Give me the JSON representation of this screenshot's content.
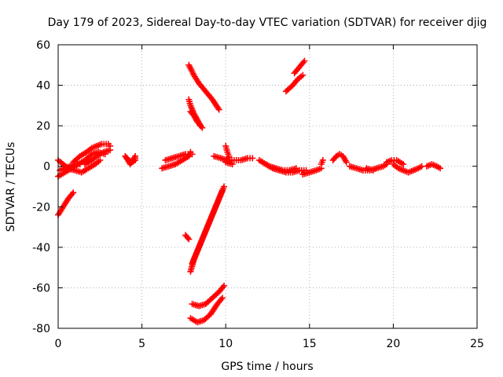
{
  "chart_data": {
    "type": "scatter",
    "title": "Day 179 of 2023, Sidereal Day-to-day VTEC variation (SDTVAR) for receiver djig",
    "xlabel": "GPS time / hours",
    "ylabel": "SDTVAR / TECUs",
    "xlim": [
      0,
      25
    ],
    "ylim": [
      -80,
      60
    ],
    "xticks": [
      0,
      5,
      10,
      15,
      20,
      25
    ],
    "yticks": [
      -80,
      -60,
      -40,
      -20,
      0,
      20,
      40,
      60
    ],
    "grid": true,
    "marker": "+",
    "series_color": "#ff0000",
    "tracks": [
      [
        [
          0.0,
          -24
        ],
        [
          0.3,
          -20
        ],
        [
          0.6,
          -16
        ],
        [
          0.9,
          -13
        ]
      ],
      [
        [
          0.0,
          -5
        ],
        [
          0.4,
          -3
        ],
        [
          0.8,
          -1
        ],
        [
          1.2,
          1
        ],
        [
          1.6,
          3
        ],
        [
          2.0,
          6
        ],
        [
          2.4,
          7
        ],
        [
          2.8,
          6
        ]
      ],
      [
        [
          0.0,
          3
        ],
        [
          0.3,
          1
        ],
        [
          0.6,
          -1
        ],
        [
          1.0,
          -2
        ],
        [
          1.4,
          -3
        ],
        [
          1.8,
          -1
        ],
        [
          2.2,
          1
        ],
        [
          2.5,
          3
        ]
      ],
      [
        [
          0.9,
          2
        ],
        [
          1.3,
          5
        ],
        [
          1.7,
          7
        ],
        [
          2.0,
          9
        ],
        [
          2.3,
          10
        ],
        [
          2.6,
          11
        ],
        [
          3.0,
          11
        ],
        [
          3.1,
          10
        ]
      ],
      [
        [
          1.6,
          1
        ],
        [
          2.0,
          3
        ],
        [
          2.3,
          5
        ],
        [
          2.7,
          7
        ],
        [
          3.1,
          8
        ]
      ],
      [
        [
          0.1,
          -2
        ],
        [
          0.4,
          -1
        ],
        [
          0.7,
          0
        ],
        [
          1.0,
          1
        ],
        [
          1.3,
          1
        ]
      ],
      [
        [
          4.0,
          5
        ],
        [
          4.2,
          3
        ],
        [
          4.4,
          2
        ],
        [
          4.6,
          3
        ],
        [
          4.6,
          5
        ],
        [
          4.3,
          1
        ],
        [
          4.1,
          4
        ]
      ],
      [
        [
          6.2,
          -1
        ],
        [
          6.6,
          0
        ],
        [
          7.0,
          1
        ],
        [
          7.4,
          3
        ],
        [
          7.8,
          5
        ],
        [
          7.9,
          7
        ],
        [
          8.0,
          6
        ]
      ],
      [
        [
          6.4,
          3
        ],
        [
          6.8,
          4
        ],
        [
          7.2,
          5
        ],
        [
          7.6,
          6
        ],
        [
          7.9,
          6
        ]
      ],
      [
        [
          7.8,
          50
        ],
        [
          8.1,
          45
        ],
        [
          8.4,
          41
        ],
        [
          8.8,
          37
        ],
        [
          9.2,
          33
        ],
        [
          9.6,
          28
        ]
      ],
      [
        [
          7.8,
          33
        ],
        [
          7.9,
          30
        ],
        [
          8.1,
          26
        ],
        [
          8.3,
          23
        ],
        [
          8.5,
          20
        ]
      ],
      [
        [
          7.9,
          27
        ],
        [
          8.1,
          25
        ],
        [
          8.3,
          22
        ],
        [
          8.6,
          19
        ]
      ],
      [
        [
          9.3,
          5
        ],
        [
          9.7,
          4
        ],
        [
          10.1,
          3
        ],
        [
          10.5,
          3
        ],
        [
          10.9,
          3
        ],
        [
          11.3,
          4
        ],
        [
          11.6,
          4
        ]
      ],
      [
        [
          10.0,
          10
        ],
        [
          10.1,
          7
        ],
        [
          10.2,
          5
        ],
        [
          10.0,
          2
        ],
        [
          10.4,
          1
        ]
      ],
      [
        [
          9.9,
          -10
        ],
        [
          9.6,
          -16
        ],
        [
          9.3,
          -22
        ],
        [
          9.0,
          -28
        ],
        [
          8.7,
          -34
        ],
        [
          8.4,
          -40
        ],
        [
          8.1,
          -46
        ],
        [
          7.9,
          -52
        ]
      ],
      [
        [
          9.8,
          -12
        ],
        [
          9.5,
          -18
        ],
        [
          9.2,
          -24
        ],
        [
          8.9,
          -30
        ],
        [
          8.6,
          -36
        ],
        [
          8.3,
          -42
        ],
        [
          8.0,
          -48
        ]
      ],
      [
        [
          7.6,
          -34
        ],
        [
          7.8,
          -36
        ]
      ],
      [
        [
          8.0,
          -68
        ],
        [
          8.4,
          -69
        ],
        [
          8.8,
          -68
        ],
        [
          9.2,
          -65
        ],
        [
          9.6,
          -62
        ],
        [
          9.9,
          -59
        ]
      ],
      [
        [
          7.9,
          -75
        ],
        [
          8.3,
          -77
        ],
        [
          8.7,
          -76
        ],
        [
          9.1,
          -73
        ],
        [
          9.5,
          -68
        ],
        [
          9.8,
          -65
        ]
      ],
      [
        [
          12.0,
          3
        ],
        [
          12.4,
          1
        ],
        [
          12.8,
          -1
        ],
        [
          13.2,
          -2
        ],
        [
          13.6,
          -3
        ],
        [
          14.0,
          -3
        ],
        [
          14.4,
          -2
        ],
        [
          14.8,
          -2
        ]
      ],
      [
        [
          12.2,
          2
        ],
        [
          12.6,
          0
        ],
        [
          13.0,
          -1
        ],
        [
          13.4,
          -2
        ],
        [
          13.8,
          -2
        ],
        [
          14.2,
          -1
        ]
      ],
      [
        [
          13.6,
          37
        ],
        [
          14.0,
          40
        ],
        [
          14.3,
          43
        ],
        [
          14.6,
          45
        ]
      ],
      [
        [
          14.1,
          46
        ],
        [
          14.4,
          49
        ],
        [
          14.7,
          52
        ]
      ],
      [
        [
          14.6,
          -4
        ],
        [
          15.0,
          -3
        ],
        [
          15.4,
          -2
        ],
        [
          15.7,
          -1
        ]
      ],
      [
        [
          15.7,
          1
        ],
        [
          15.8,
          3
        ]
      ],
      [
        [
          16.4,
          3
        ],
        [
          16.6,
          5
        ],
        [
          16.8,
          6
        ],
        [
          17.0,
          5
        ],
        [
          17.2,
          2
        ]
      ],
      [
        [
          17.4,
          0
        ],
        [
          17.8,
          -1
        ],
        [
          18.2,
          -2
        ],
        [
          18.6,
          -2
        ],
        [
          19.0,
          -1
        ],
        [
          19.4,
          0
        ],
        [
          19.6,
          1
        ]
      ],
      [
        [
          18.4,
          -1
        ],
        [
          18.8,
          -2
        ]
      ],
      [
        [
          19.6,
          2
        ],
        [
          19.9,
          3
        ],
        [
          20.2,
          3
        ],
        [
          20.4,
          2
        ],
        [
          20.6,
          1
        ]
      ],
      [
        [
          20.0,
          1
        ],
        [
          20.3,
          -1
        ],
        [
          20.6,
          -2
        ],
        [
          20.9,
          -3
        ],
        [
          21.2,
          -2
        ],
        [
          21.5,
          -1
        ],
        [
          21.7,
          0
        ]
      ],
      [
        [
          22.0,
          0
        ],
        [
          22.3,
          1
        ],
        [
          22.6,
          0
        ],
        [
          22.8,
          -1
        ]
      ]
    ]
  }
}
